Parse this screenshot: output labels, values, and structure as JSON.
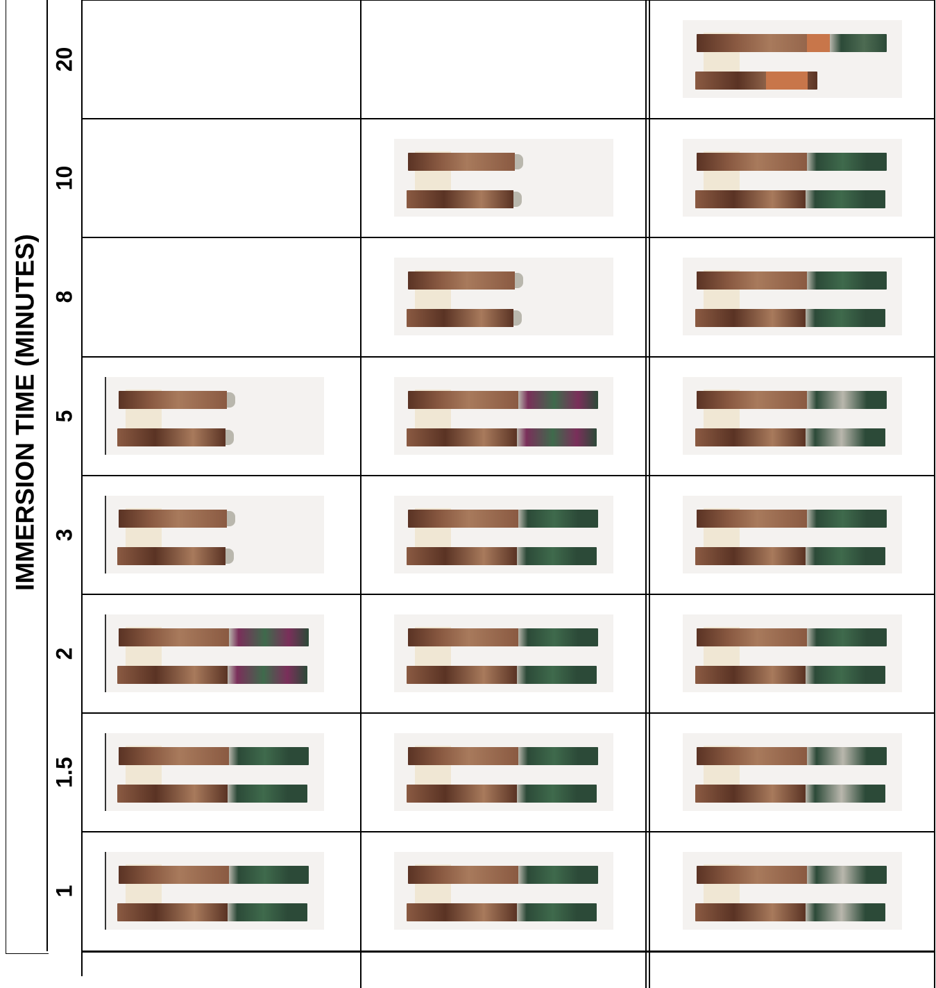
{
  "figure": {
    "y_axis_title": "IMMERSION TIME (MINUTES)",
    "immersion_times": [
      "20",
      "10",
      "8",
      "5",
      "3",
      "2",
      "1.5",
      "1"
    ],
    "columns": [
      "",
      "",
      ""
    ]
  },
  "grid": [
    {
      "time": "20",
      "samples": [
        null,
        null,
        {
          "style": "partial-orange"
        }
      ]
    },
    {
      "time": "10",
      "samples": [
        null,
        {
          "style": "short-tip"
        },
        {
          "style": "coated-green"
        }
      ]
    },
    {
      "time": "8",
      "samples": [
        null,
        {
          "style": "short-tip"
        },
        {
          "style": "coated-green"
        }
      ]
    },
    {
      "time": "5",
      "samples": [
        {
          "style": "short-tip"
        },
        {
          "style": "coated-magenta"
        },
        {
          "style": "coated-mottled"
        }
      ]
    },
    {
      "time": "3",
      "samples": [
        {
          "style": "short-tip"
        },
        {
          "style": "coated-green"
        },
        {
          "style": "coated-green"
        }
      ]
    },
    {
      "time": "2",
      "samples": [
        {
          "style": "coated-magenta"
        },
        {
          "style": "coated-green"
        },
        {
          "style": "coated-green"
        }
      ]
    },
    {
      "time": "1.5",
      "samples": [
        {
          "style": "coated-green"
        },
        {
          "style": "coated-green"
        },
        {
          "style": "coated-mottled"
        }
      ]
    },
    {
      "time": "1",
      "samples": [
        {
          "style": "coated-green"
        },
        {
          "style": "coated-green"
        },
        {
          "style": "coated-mottled"
        }
      ]
    }
  ],
  "colors": {
    "copper_dark": "#5a3324",
    "copper": "#8a5a42",
    "copper_light": "#a87a5c",
    "coating_green": "#2c4a38",
    "coating_magenta": "#7a2f5a",
    "coating_silver": "#b9b7ad",
    "tape": "#efe6d2",
    "orange_patch": "#c8764a",
    "background_sample": "#f4f2f0"
  }
}
